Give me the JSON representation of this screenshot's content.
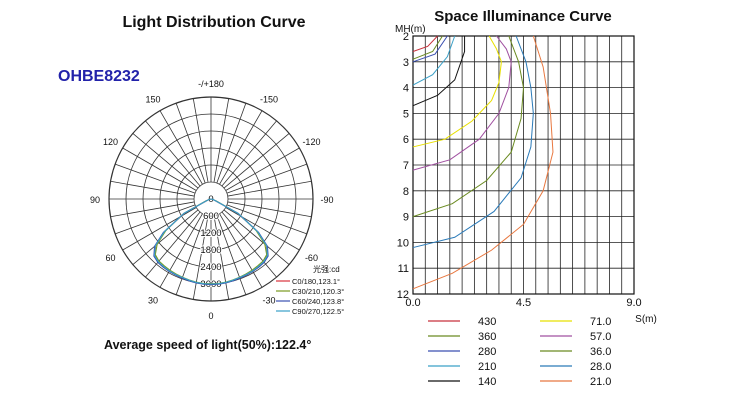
{
  "left_panel": {
    "title": "Light Distribution Curve",
    "model": "OHBE8232",
    "footer": "Average speed of light(50%):122.4°"
  },
  "right_panel": {
    "title": "Space Illuminance Curve"
  },
  "colors": {
    "model_text": "#2222aa",
    "grid": "#333333"
  },
  "chart_data": [
    {
      "type": "polar",
      "angle_labels": [
        {
          "angle": 0,
          "label": "0"
        },
        {
          "angle": 30,
          "label": "30"
        },
        {
          "angle": 60,
          "label": "60"
        },
        {
          "angle": 90,
          "label": "90"
        },
        {
          "angle": 120,
          "label": "120"
        },
        {
          "angle": 150,
          "label": "150"
        },
        {
          "angle": 180,
          "label": "-/+180"
        },
        {
          "angle": -150,
          "label": "-150"
        },
        {
          "angle": -120,
          "label": "-120"
        },
        {
          "angle": -90,
          "label": "-90"
        },
        {
          "angle": -60,
          "label": "-60"
        },
        {
          "angle": -30,
          "label": "-30"
        }
      ],
      "radial_ticks": [
        {
          "value": 0,
          "label": "0"
        },
        {
          "value": 600,
          "label": "600"
        },
        {
          "value": 1200,
          "label": "1200"
        },
        {
          "value": 1800,
          "label": "1800"
        },
        {
          "value": 2400,
          "label": "2400"
        },
        {
          "value": 3000,
          "label": "3000"
        }
      ],
      "r_max": 3600,
      "legend_title": "光强:cd",
      "series": [
        {
          "name": "C0/180,123.1°",
          "color": "#d9323c",
          "angles": [
            -90,
            -80,
            -70,
            -62,
            -55,
            -50,
            -45,
            -40,
            -35,
            -30,
            -25,
            -20,
            -15,
            -10,
            -5,
            0,
            5,
            10,
            15,
            20,
            25,
            30,
            35,
            40,
            45,
            50,
            55,
            62,
            70,
            80,
            90
          ],
          "values": [
            0,
            30,
            120,
            1050,
            2000,
            2550,
            2800,
            2900,
            2920,
            2940,
            2950,
            2960,
            2980,
            3000,
            3010,
            3000,
            3010,
            3000,
            2980,
            2960,
            2950,
            2940,
            2920,
            2900,
            2800,
            2550,
            2000,
            1050,
            120,
            30,
            0
          ]
        },
        {
          "name": "C30/210,120.3°",
          "color": "#7a9a20",
          "angles": [
            -90,
            -80,
            -70,
            -62,
            -55,
            -50,
            -45,
            -40,
            -35,
            -30,
            -25,
            -20,
            -15,
            -10,
            -5,
            0,
            5,
            10,
            15,
            20,
            25,
            30,
            35,
            40,
            45,
            50,
            55,
            62,
            70,
            80,
            90
          ],
          "values": [
            0,
            40,
            200,
            1100,
            1950,
            2480,
            2780,
            2860,
            2880,
            2900,
            2920,
            2940,
            2960,
            2980,
            2990,
            2990,
            2990,
            2980,
            2960,
            2940,
            2920,
            2900,
            2880,
            2860,
            2780,
            2480,
            1950,
            1100,
            200,
            40,
            0
          ]
        },
        {
          "name": "C60/240,123.8°",
          "color": "#3a4fb0",
          "angles": [
            -90,
            -80,
            -70,
            -62,
            -55,
            -50,
            -45,
            -40,
            -35,
            -30,
            -25,
            -20,
            -15,
            -10,
            -5,
            0,
            5,
            10,
            15,
            20,
            25,
            30,
            35,
            40,
            45,
            50,
            55,
            62,
            70,
            80,
            90
          ],
          "values": [
            0,
            35,
            150,
            1080,
            2050,
            2600,
            2850,
            2920,
            2940,
            2950,
            2960,
            2970,
            2990,
            3010,
            3020,
            3020,
            3020,
            3010,
            2990,
            2970,
            2960,
            2950,
            2940,
            2920,
            2850,
            2600,
            2050,
            1080,
            150,
            35,
            0
          ]
        },
        {
          "name": "C90/270,122.5°",
          "color": "#3aa0c8",
          "angles": [
            -90,
            -80,
            -70,
            -62,
            -55,
            -50,
            -45,
            -40,
            -35,
            -30,
            -25,
            -20,
            -15,
            -10,
            -5,
            0,
            5,
            10,
            15,
            20,
            25,
            30,
            35,
            40,
            45,
            50,
            55,
            62,
            70,
            80,
            90
          ],
          "values": [
            0,
            35,
            140,
            1070,
            2000,
            2560,
            2820,
            2890,
            2910,
            2930,
            2940,
            2950,
            2970,
            2990,
            3000,
            3000,
            3000,
            2990,
            2970,
            2950,
            2940,
            2930,
            2910,
            2890,
            2820,
            2560,
            2000,
            1070,
            140,
            35,
            0
          ]
        }
      ]
    },
    {
      "type": "line",
      "xlabel": "S(m)",
      "ylabel": "MH(m)",
      "xlim": [
        0,
        9
      ],
      "ylim": [
        2,
        12
      ],
      "y_inverted": true,
      "x_ticks": [
        {
          "value": 0,
          "label": "0.0"
        },
        {
          "value": 4.5,
          "label": "4.5"
        },
        {
          "value": 9,
          "label": "9.0"
        }
      ],
      "y_ticks": [
        {
          "value": 2,
          "label": "2"
        },
        {
          "value": 3,
          "label": "3"
        },
        {
          "value": 4,
          "label": "4"
        },
        {
          "value": 5,
          "label": "5"
        },
        {
          "value": 6,
          "label": "6"
        },
        {
          "value": 7,
          "label": "7"
        },
        {
          "value": 8,
          "label": "8"
        },
        {
          "value": 9,
          "label": "9"
        },
        {
          "value": 10,
          "label": "10"
        },
        {
          "value": 11,
          "label": "11"
        },
        {
          "value": 12,
          "label": "12"
        }
      ],
      "grid": true,
      "series": [
        {
          "name": "430",
          "color": "#c8323c",
          "x": [
            0,
            0.6,
            1.0
          ],
          "y": [
            2.6,
            2.4,
            2.0
          ]
        },
        {
          "name": "360",
          "color": "#6a8a20",
          "x": [
            0,
            0.8,
            1.2
          ],
          "y": [
            2.9,
            2.6,
            2.0
          ]
        },
        {
          "name": "280",
          "color": "#3a4fb0",
          "x": [
            0,
            0.9,
            1.4
          ],
          "y": [
            3.0,
            2.7,
            2.0
          ]
        },
        {
          "name": "210",
          "color": "#3aa0c8",
          "x": [
            0,
            0.8,
            1.4,
            1.7
          ],
          "y": [
            3.9,
            3.5,
            2.8,
            2.0
          ]
        },
        {
          "name": "140",
          "color": "#111111",
          "x": [
            0,
            1.0,
            1.7,
            2.1,
            2.1
          ],
          "y": [
            4.7,
            4.3,
            3.7,
            2.6,
            2.0
          ]
        },
        {
          "name": "71.0",
          "color": "#e8e000",
          "x": [
            0,
            1.3,
            2.4,
            3.2,
            3.5,
            3.6,
            3.4,
            3.1
          ],
          "y": [
            6.3,
            6.0,
            5.3,
            4.5,
            3.8,
            3.0,
            2.5,
            2.0
          ]
        },
        {
          "name": "57.0",
          "color": "#a050a0",
          "x": [
            0,
            1.5,
            2.7,
            3.5,
            3.9,
            4.0,
            3.8,
            3.4
          ],
          "y": [
            7.2,
            6.8,
            6.0,
            5.0,
            4.0,
            3.0,
            2.5,
            2.0
          ]
        },
        {
          "name": "36.0",
          "color": "#6a8a20",
          "x": [
            0,
            1.6,
            3.0,
            4.0,
            4.4,
            4.5,
            4.3,
            3.9
          ],
          "y": [
            9.0,
            8.5,
            7.6,
            6.5,
            5.2,
            4.0,
            3.0,
            2.0
          ]
        },
        {
          "name": "28.0",
          "color": "#2a7ab8",
          "x": [
            0,
            1.7,
            3.3,
            4.4,
            4.8,
            4.9,
            4.8,
            4.6,
            4.2
          ],
          "y": [
            10.2,
            9.8,
            8.8,
            7.5,
            6.3,
            5.0,
            4.0,
            3.0,
            2.0
          ]
        },
        {
          "name": "21.0",
          "color": "#e87840",
          "x": [
            0,
            1.6,
            3.2,
            4.5,
            5.3,
            5.7,
            5.6,
            5.3,
            4.9
          ],
          "y": [
            11.8,
            11.2,
            10.3,
            9.3,
            8.0,
            6.5,
            5.0,
            3.2,
            2.0
          ]
        }
      ]
    }
  ]
}
